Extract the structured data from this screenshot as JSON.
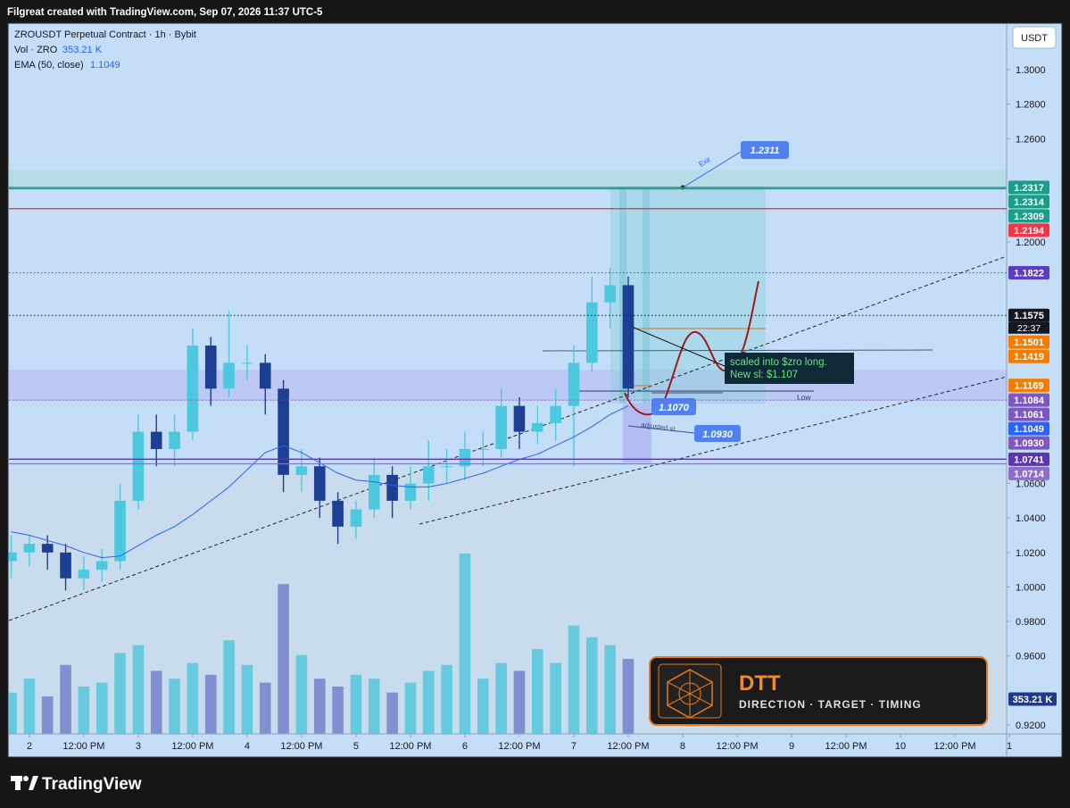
{
  "header": {
    "text": "Filgreat created with TradingView.com, Sep 07, 2026 11:37 UTC-5"
  },
  "chart_data": {
    "type": "candlestick",
    "title": "ZROUSDT Perpetual Contract · 1h · Bybit",
    "volume_label": "Vol · ZRO",
    "volume_value_label": "353.21 K",
    "ema_label": "EMA (50, close)",
    "ema_value_label": "1.1049",
    "currency": "USDT",
    "x": [
      -4,
      0,
      4,
      8,
      12,
      16,
      20,
      24,
      28,
      32,
      36,
      40,
      44,
      48,
      52,
      56,
      60,
      64,
      68,
      72,
      76,
      80,
      84,
      88,
      92,
      96,
      100,
      104,
      108,
      112,
      116,
      120,
      124,
      128,
      132
    ],
    "open": [
      1.015,
      1.02,
      1.025,
      1.02,
      1.005,
      1.01,
      1.015,
      1.05,
      1.09,
      1.08,
      1.09,
      1.14,
      1.115,
      1.13,
      1.13,
      1.115,
      1.065,
      1.07,
      1.05,
      1.035,
      1.045,
      1.065,
      1.05,
      1.06,
      1.07,
      1.07,
      1.08,
      1.08,
      1.105,
      1.09,
      1.095,
      1.105,
      1.13,
      1.165,
      1.175
    ],
    "high": [
      1.03,
      1.03,
      1.03,
      1.025,
      1.018,
      1.022,
      1.06,
      1.1,
      1.1,
      1.1,
      1.15,
      1.145,
      1.16,
      1.14,
      1.135,
      1.12,
      1.08,
      1.075,
      1.055,
      1.05,
      1.075,
      1.07,
      1.07,
      1.085,
      1.08,
      1.09,
      1.09,
      1.115,
      1.11,
      1.105,
      1.115,
      1.14,
      1.18,
      1.185,
      1.18
    ],
    "low": [
      1.005,
      1.012,
      1.01,
      0.998,
      0.998,
      1.003,
      1.01,
      1.045,
      1.07,
      1.07,
      1.085,
      1.105,
      1.11,
      1.12,
      1.1,
      1.055,
      1.055,
      1.04,
      1.025,
      1.028,
      1.04,
      1.04,
      1.045,
      1.05,
      1.06,
      1.062,
      1.07,
      1.075,
      1.08,
      1.083,
      1.085,
      1.07,
      1.125,
      1.15,
      1.11
    ],
    "close": [
      1.02,
      1.025,
      1.02,
      1.005,
      1.01,
      1.015,
      1.05,
      1.09,
      1.08,
      1.09,
      1.14,
      1.115,
      1.13,
      1.13,
      1.115,
      1.065,
      1.07,
      1.05,
      1.035,
      1.045,
      1.065,
      1.05,
      1.06,
      1.07,
      1.07,
      1.08,
      1.08,
      1.105,
      1.09,
      1.095,
      1.105,
      1.13,
      1.165,
      1.175,
      1.115
    ],
    "volume": [
      420,
      560,
      380,
      700,
      480,
      520,
      820,
      900,
      640,
      560,
      720,
      600,
      950,
      700,
      520,
      1520,
      800,
      560,
      480,
      600,
      560,
      420,
      520,
      640,
      700,
      1830,
      560,
      720,
      640,
      860,
      720,
      1100,
      980,
      900,
      760
    ],
    "ema": [
      1.032,
      1.03,
      1.027,
      1.024,
      1.02,
      1.017,
      1.018,
      1.024,
      1.03,
      1.035,
      1.042,
      1.05,
      1.058,
      1.068,
      1.078,
      1.082,
      1.078,
      1.072,
      1.066,
      1.062,
      1.061,
      1.059,
      1.058,
      1.058,
      1.06,
      1.063,
      1.066,
      1.07,
      1.074,
      1.077,
      1.082,
      1.087,
      1.093,
      1.1,
      1.105
    ],
    "xlim": [
      -4.5,
      215.4
    ],
    "xticks": [
      {
        "value": 0,
        "label": "2"
      },
      {
        "value": 12,
        "label": "12:00 PM"
      },
      {
        "value": 24,
        "label": "3"
      },
      {
        "value": 36,
        "label": "12:00 PM"
      },
      {
        "value": 48,
        "label": "4"
      },
      {
        "value": 60,
        "label": "12:00 PM"
      },
      {
        "value": 72,
        "label": "5"
      },
      {
        "value": 84,
        "label": "12:00 PM"
      },
      {
        "value": 96,
        "label": "6"
      },
      {
        "value": 108,
        "label": "12:00 PM"
      },
      {
        "value": 120,
        "label": "7"
      },
      {
        "value": 132,
        "label": "12:00 PM"
      },
      {
        "value": 144,
        "label": "8"
      },
      {
        "value": 156,
        "label": "12:00 PM"
      },
      {
        "value": 168,
        "label": "9"
      },
      {
        "value": 180,
        "label": "12:00 PM"
      },
      {
        "value": 192,
        "label": "10"
      },
      {
        "value": 204,
        "label": "12:00 PM"
      },
      {
        "value": 216,
        "label": "1"
      }
    ],
    "ylim": [
      0.9148,
      1.3264
    ],
    "yticks": [
      {
        "value": 1.3,
        "label": "1.3000"
      },
      {
        "value": 1.28,
        "label": "1.2800"
      },
      {
        "value": 1.26,
        "label": "1.2600"
      },
      {
        "value": 1.2,
        "label": "1.2000"
      },
      {
        "value": 1.06,
        "label": "1.0600"
      },
      {
        "value": 1.04,
        "label": "1.0400"
      },
      {
        "value": 1.02,
        "label": "1.0200"
      },
      {
        "value": 1.0,
        "label": "1.0000"
      },
      {
        "value": 0.98,
        "label": "0.9800"
      },
      {
        "value": 0.96,
        "label": "0.9600"
      },
      {
        "value": 0.92,
        "label": "0.9200"
      }
    ],
    "vlim": [
      0,
      1830
    ],
    "colors": {
      "up": "#4cc9de",
      "down": "#1c3f94",
      "volume_up": "#5cc8dc",
      "volume_down": "#7a86cc",
      "ema": "#2962ff"
    },
    "levels": [
      {
        "value": 1.2317,
        "label": "1.2317",
        "color": "#1b9e86",
        "line": "solid"
      },
      {
        "value": 1.2314,
        "label": "1.2314",
        "color": "#1b9e86",
        "line": "none"
      },
      {
        "value": 1.2309,
        "label": "1.2309",
        "color": "#1b9e86",
        "line": "solid"
      },
      {
        "value": 1.2194,
        "label": "1.2194",
        "color": "#f23645",
        "line": "solid"
      },
      {
        "value": 1.1822,
        "label": "1.1822",
        "color": "#5b3cc4",
        "line": "dotted"
      },
      {
        "value": 1.1575,
        "label": "1.1575",
        "color": "#131722",
        "line": "dotted",
        "countdown": "22:37"
      },
      {
        "value": 1.1501,
        "label": "1.1501",
        "color": "#f57c00",
        "line": "none"
      },
      {
        "value": 1.1419,
        "label": "1.1419",
        "color": "#f57c00",
        "line": "none"
      },
      {
        "value": 1.1169,
        "label": "1.1169",
        "color": "#f57c00",
        "line": "none"
      },
      {
        "value": 1.1084,
        "label": "1.1084",
        "color": "#7e57c2",
        "line": "dotted"
      },
      {
        "value": 1.1061,
        "label": "1.1061",
        "color": "#7e57c2",
        "line": "none"
      },
      {
        "value": 1.1049,
        "label": "1.1049",
        "color": "#2962ff",
        "line": "none"
      },
      {
        "value": 1.093,
        "label": "1.0930",
        "color": "#7e57c2",
        "line": "none"
      },
      {
        "value": 1.0741,
        "label": "1.0741",
        "color": "#5e35b1",
        "line": "solid"
      },
      {
        "value": 1.0714,
        "label": "1.0714",
        "color": "#8e6cd0",
        "line": "solid"
      }
    ],
    "volume_level": {
      "value": 353.21,
      "label": "353.21 K",
      "color": "#1e3a8a"
    },
    "annotations": {
      "exit": "Exit",
      "target": "1.2311",
      "note": [
        "scaled into $zro  long.",
        "New sl: $1.107"
      ],
      "low": "Low",
      "entry": "1.1070",
      "adjusted": "adjusted sl",
      "stop": "1.0930"
    }
  },
  "logo": {
    "name": "DTT",
    "tagline": "DIRECTION · TARGET · TIMING"
  },
  "footer": {
    "brand": "TradingView"
  }
}
